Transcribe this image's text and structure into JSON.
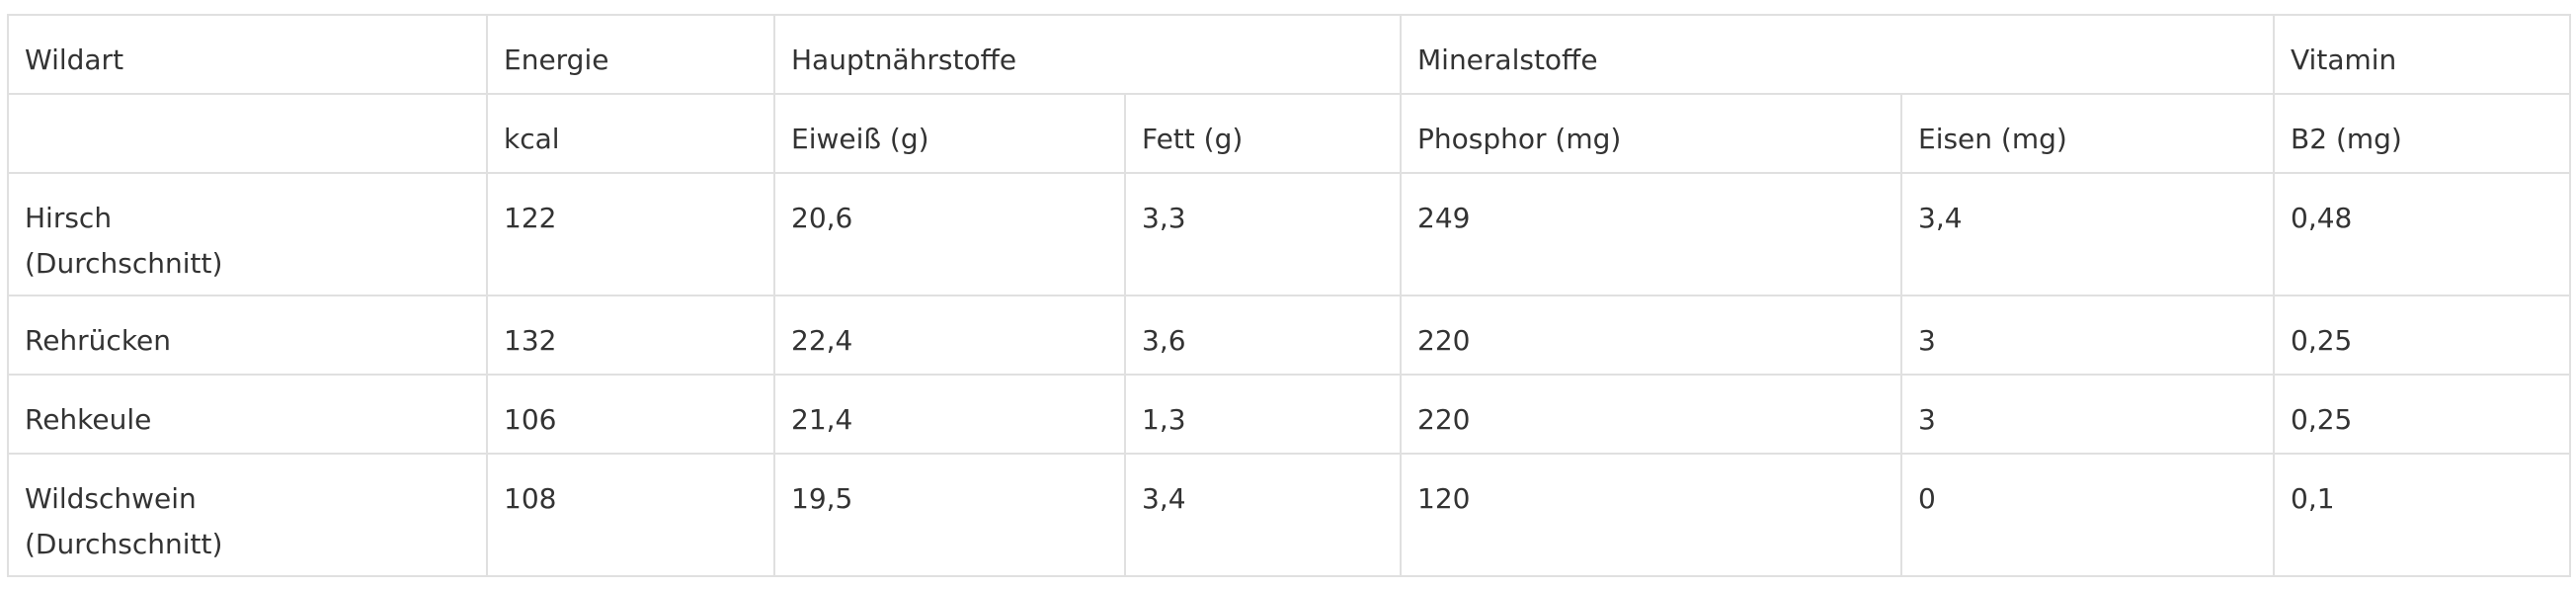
{
  "table": {
    "header_top": [
      "Wildart",
      "Energie",
      "Hauptnährstoffe",
      "Mineralstoffe",
      "Vitamin"
    ],
    "header_units": [
      "",
      "kcal",
      "Eiweiß (g)",
      "Fett (g)",
      "Phosphor (mg)",
      "Eisen (mg)",
      "B2 (mg)"
    ],
    "rows": [
      {
        "name_line1": "Hirsch",
        "name_line2": "(Durchschnitt)",
        "kcal": "122",
        "eiweiss": "20,6",
        "fett": "3,3",
        "phosphor": "249",
        "eisen": "3,4",
        "b2": "0,48"
      },
      {
        "name_line1": "Rehrücken",
        "name_line2": "",
        "kcal": "132",
        "eiweiss": "22,4",
        "fett": "3,6",
        "phosphor": "220",
        "eisen": "3",
        "b2": "0,25"
      },
      {
        "name_line1": "Rehkeule",
        "name_line2": "",
        "kcal": "106",
        "eiweiss": "21,4",
        "fett": "1,3",
        "phosphor": "220",
        "eisen": "3",
        "b2": "0,25"
      },
      {
        "name_line1": "Wildschwein",
        "name_line2": "(Durchschnitt)",
        "kcal": "108",
        "eiweiss": "19,5",
        "fett": "3,4",
        "phosphor": "120",
        "eisen": "0",
        "b2": "0,1"
      }
    ]
  },
  "colors": {
    "border": "#e0e0e0",
    "text": "#333333",
    "background": "#ffffff"
  }
}
